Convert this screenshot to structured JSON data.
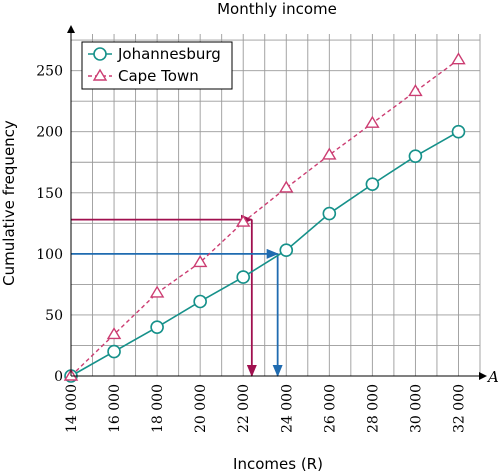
{
  "chart_data": {
    "type": "line",
    "title": "Monthly income",
    "xlabel": "Incomes (R)",
    "ylabel": "Cumulative frequency",
    "x_axis_var": "A",
    "x": [
      14000,
      16000,
      18000,
      20000,
      22000,
      24000,
      26000,
      28000,
      30000,
      32000
    ],
    "x_tick_labels": [
      "14 000",
      "16 000",
      "18 000",
      "20 000",
      "22 000",
      "24 000",
      "26 000",
      "28 000",
      "30 000",
      "32 000"
    ],
    "xlim": [
      14000,
      33000
    ],
    "ylim": [
      0,
      280
    ],
    "y_ticks": [
      0,
      50,
      100,
      150,
      200,
      250
    ],
    "grid": true,
    "legend_position": "top-left",
    "series": [
      {
        "name": "Johannesburg",
        "values": [
          0,
          20,
          40,
          61,
          81,
          103,
          133,
          157,
          180,
          200
        ],
        "color": "#16918a",
        "marker": "circle",
        "dash": false
      },
      {
        "name": "Cape Town",
        "values": [
          0,
          34,
          68,
          93,
          126,
          154,
          181,
          207,
          233,
          259
        ],
        "color": "#cc3d72",
        "marker": "triangle",
        "dash": true
      }
    ],
    "annotations": [
      {
        "color": "#a0104f",
        "y": 128,
        "x": 22400
      },
      {
        "color": "#1f6bb0",
        "y": 100,
        "x": 23600
      }
    ]
  }
}
